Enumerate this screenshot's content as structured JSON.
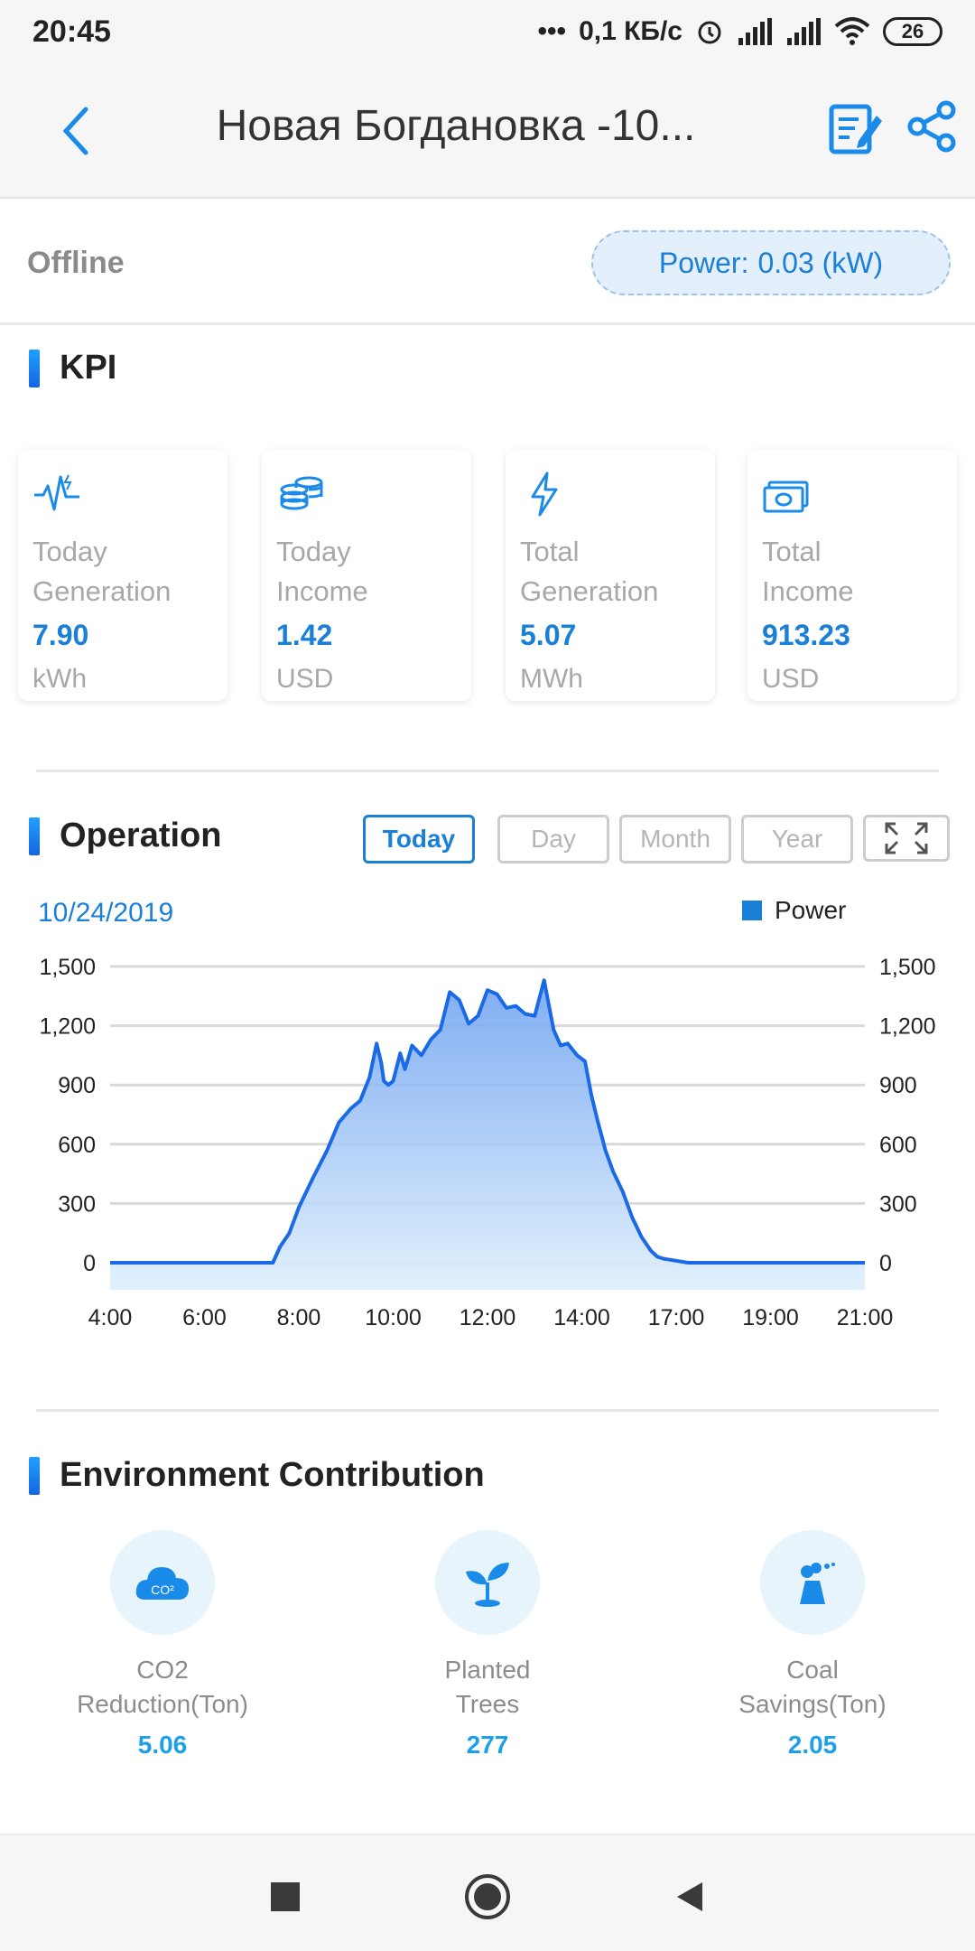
{
  "status_bar": {
    "time": "20:45",
    "net_speed": "0,1 КБ/с",
    "battery": "26"
  },
  "header": {
    "title": "Новая Богдановка -10..."
  },
  "status": {
    "state": "Offline",
    "power_label": "Power:",
    "power_value": "0.03 (kW)"
  },
  "kpi": {
    "title": "KPI",
    "cards": [
      {
        "icon": "pulse-icon",
        "label_line1": "Today",
        "label_line2": "Generation",
        "value": "7.90",
        "unit": "kWh"
      },
      {
        "icon": "coins-icon",
        "label_line1": "Today",
        "label_line2": "Income",
        "value": "1.42",
        "unit": "USD"
      },
      {
        "icon": "lightning-icon",
        "label_line1": "Total",
        "label_line2": "Generation",
        "value": "5.07",
        "unit": "MWh"
      },
      {
        "icon": "banknote-icon",
        "label_line1": "Total",
        "label_line2": "Income",
        "value": "913.23",
        "unit": "USD"
      }
    ]
  },
  "operation": {
    "title": "Operation",
    "tabs": [
      "Today",
      "Day",
      "Month",
      "Year"
    ],
    "active_tab": "Today",
    "date": "10/24/2019",
    "legend": "Power"
  },
  "chart_data": {
    "type": "area",
    "title": "",
    "xlabel": "",
    "ylabel": "",
    "x_ticks": [
      "4:00",
      "6:00",
      "8:00",
      "10:00",
      "12:00",
      "14:00",
      "17:00",
      "19:00",
      "21:00"
    ],
    "y_ticks": [
      "0",
      "300",
      "600",
      "900",
      "1,200",
      "1,500"
    ],
    "ylim": [
      0,
      1500
    ],
    "grid": true,
    "legend_position": "top-right",
    "series": [
      {
        "name": "Power",
        "color": "#1a6ae8",
        "x": [
          4.0,
          7.45,
          7.6,
          7.8,
          8.0,
          8.3,
          8.6,
          8.85,
          9.1,
          9.3,
          9.5,
          9.65,
          9.75,
          9.8,
          9.9,
          10.0,
          10.15,
          10.25,
          10.4,
          10.6,
          10.8,
          11.0,
          11.2,
          11.4,
          11.6,
          11.8,
          12.0,
          12.2,
          12.4,
          12.6,
          12.8,
          13.0,
          13.2,
          13.4,
          13.55,
          13.7,
          13.9,
          14.1,
          14.3,
          14.5,
          14.75,
          15.0,
          15.3,
          15.6,
          15.9,
          16.2,
          16.4,
          16.6,
          16.8,
          17.0,
          17.25,
          17.5,
          17.75,
          18.0,
          18.15,
          18.3,
          21.0
        ],
        "y": [
          0,
          0,
          80,
          150,
          280,
          430,
          570,
          710,
          780,
          820,
          940,
          1110,
          1010,
          920,
          900,
          920,
          1060,
          980,
          1100,
          1050,
          1130,
          1180,
          1370,
          1330,
          1210,
          1250,
          1380,
          1360,
          1290,
          1300,
          1260,
          1250,
          1430,
          1180,
          1100,
          1110,
          1050,
          1020,
          850,
          720,
          570,
          460,
          360,
          230,
          130,
          60,
          30,
          20,
          15,
          10,
          0,
          0,
          0,
          0,
          0,
          0,
          0
        ]
      }
    ]
  },
  "environment": {
    "title": "Environment Contribution",
    "items": [
      {
        "icon": "co2-cloud-icon",
        "label_line1": "CO2",
        "label_line2": "Reduction(Ton)",
        "value": "5.06"
      },
      {
        "icon": "plant-icon",
        "label_line1": "Planted",
        "label_line2": "Trees",
        "value": "277"
      },
      {
        "icon": "coal-plant-icon",
        "label_line1": "Coal",
        "label_line2": "Savings(Ton)",
        "value": "2.05"
      }
    ]
  },
  "colors": {
    "accent": "#1a7fd7",
    "chart_line": "#1a6ae8",
    "env_value": "#1ea0e8"
  }
}
